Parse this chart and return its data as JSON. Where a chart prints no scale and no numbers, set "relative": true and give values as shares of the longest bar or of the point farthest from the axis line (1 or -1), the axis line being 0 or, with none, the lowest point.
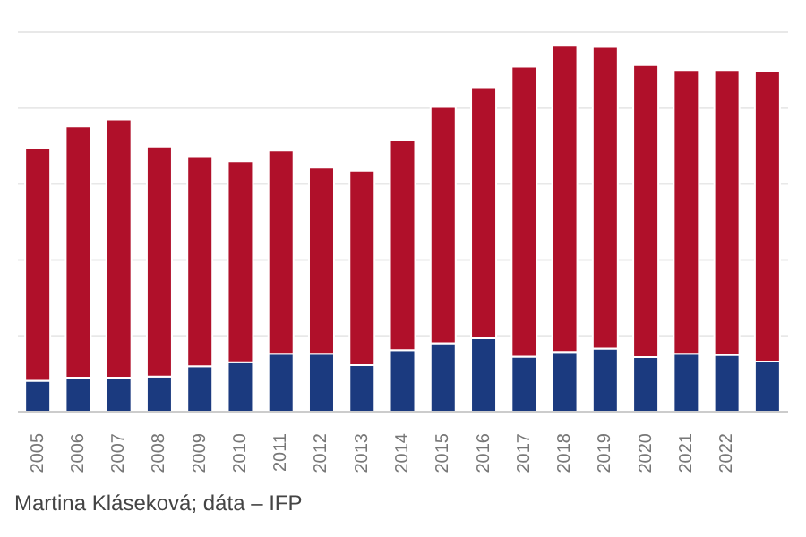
{
  "chart_data": {
    "type": "bar",
    "stacked": true,
    "relative": true,
    "grid": "y",
    "categories": [
      "2005",
      "2006",
      "2007",
      "2008",
      "2009",
      "2010",
      "2011",
      "2012",
      "2013",
      "2014",
      "2015",
      "2016",
      "2017",
      "2018",
      "2019",
      "2020",
      "2021",
      "2022",
      null
    ],
    "series": [
      {
        "color": "#1b3a7f",
        "values": [
          0.084,
          0.093,
          0.093,
          0.096,
          0.124,
          0.135,
          0.158,
          0.158,
          0.127,
          0.168,
          0.187,
          0.2,
          0.15,
          0.163,
          0.172,
          0.149,
          0.158,
          0.155,
          0.137
        ]
      },
      {
        "color": "#b0102a",
        "values": [
          0.635,
          0.685,
          0.704,
          0.627,
          0.573,
          0.548,
          0.554,
          0.508,
          0.53,
          0.573,
          0.644,
          0.685,
          0.791,
          0.837,
          0.823,
          0.796,
          0.774,
          0.777,
          0.792
        ]
      }
    ],
    "annotations": [
      "Martina Kláseková; dáta – IFP"
    ]
  }
}
